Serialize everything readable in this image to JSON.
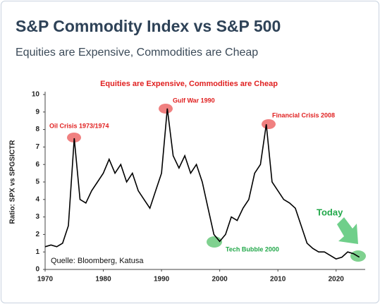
{
  "header": {
    "title": "S&P Commodity Index vs S&P 500",
    "subtitle": "Equities are Expensive, Commodities are Cheap"
  },
  "chart_data": {
    "type": "line",
    "title": "Equities are Expensive, Commodities are Cheap",
    "y_label": "Ratio: SPX vs SPGSICTR",
    "x": [
      1970,
      1971,
      1972,
      1973,
      1974,
      1975,
      1976,
      1977,
      1978,
      1979,
      1980,
      1981,
      1982,
      1983,
      1984,
      1985,
      1986,
      1987,
      1988,
      1989,
      1990,
      1991,
      1992,
      1993,
      1994,
      1995,
      1996,
      1997,
      1998,
      1999,
      2000,
      2001,
      2002,
      2003,
      2004,
      2005,
      2006,
      2007,
      2008,
      2009,
      2010,
      2011,
      2012,
      2013,
      2014,
      2015,
      2016,
      2017,
      2018,
      2019,
      2020,
      2021,
      2022,
      2023,
      2024
    ],
    "values": [
      1.3,
      1.4,
      1.3,
      1.5,
      2.5,
      7.5,
      4.0,
      3.8,
      4.5,
      5.0,
      5.5,
      6.3,
      5.5,
      6.0,
      5.0,
      5.5,
      4.5,
      4.0,
      3.5,
      4.5,
      5.5,
      9.2,
      6.5,
      5.8,
      6.5,
      5.5,
      6.0,
      5.0,
      3.5,
      2.0,
      1.6,
      2.0,
      3.0,
      2.8,
      3.5,
      4.0,
      5.5,
      6.0,
      8.3,
      5.0,
      4.5,
      4.0,
      3.8,
      3.5,
      2.5,
      1.5,
      1.2,
      1.0,
      1.0,
      0.8,
      0.6,
      0.7,
      1.0,
      0.9,
      0.7
    ],
    "color": "#000000",
    "xlim": [
      1970,
      2025
    ],
    "xticks": [
      1970,
      1980,
      1990,
      2000,
      2010,
      2020
    ],
    "ylim": [
      0,
      10
    ],
    "yticks": [
      0,
      1,
      2,
      3,
      4,
      5,
      6,
      7,
      8,
      9,
      10
    ],
    "annotations": [
      "Oil Crisis 1973/1974",
      "Gulf War 1990",
      "Financial Crisis 2008",
      "Tech Bubble 2000",
      "Today"
    ],
    "source": "Quelle: Bloomberg, Katusa"
  }
}
